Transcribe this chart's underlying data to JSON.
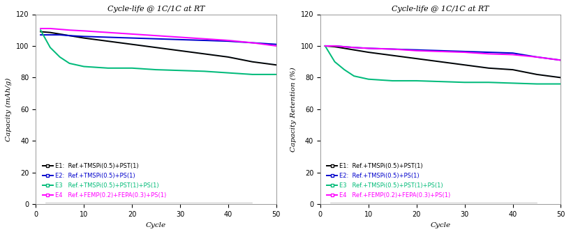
{
  "title": "Cycle-life @ 1C/1C at RT",
  "xlabel": "Cycle",
  "ylabel_left": "Capacity (mAh/g)",
  "ylabel_right": "Capacity Retention (%)",
  "xlim": [
    0,
    50
  ],
  "ylim_left": [
    0,
    120
  ],
  "ylim_right": [
    0,
    120
  ],
  "yticks_left": [
    0,
    20,
    40,
    60,
    80,
    100,
    120
  ],
  "yticks_right": [
    0,
    20,
    40,
    60,
    80,
    100,
    120
  ],
  "xticks": [
    0,
    10,
    20,
    30,
    40,
    50
  ],
  "legend_labels": [
    "E1:  Ref.+TMSPi(0.5)+PST(1)",
    "E2:  Ref.+TMSPi(0.5)+PS(1)",
    "E3   Ref.+TMSPi(0.5)+PST(1)+PS(1)",
    "E4   Ref.+FEMP(0.2)+FEPA(0.3)+PS(1)"
  ],
  "line_colors": [
    "#000000",
    "#0000cc",
    "#00bb77",
    "#ff00ff"
  ],
  "ghost_color": "#aaddff",
  "cycles": [
    1,
    3,
    5,
    7,
    10,
    15,
    20,
    25,
    30,
    35,
    40,
    45,
    50
  ],
  "capacity_E1": [
    109,
    108.5,
    107.5,
    106.5,
    105,
    103,
    101,
    99,
    97,
    95,
    93,
    90,
    88
  ],
  "capacity_E2": [
    107,
    107,
    107,
    106.5,
    106,
    105.5,
    105,
    104.5,
    104,
    103.5,
    103,
    102,
    101
  ],
  "capacity_E3": [
    110,
    99,
    93,
    89,
    87,
    86,
    86,
    85,
    84.5,
    84,
    83,
    82,
    82
  ],
  "capacity_E4": [
    111,
    111,
    110.5,
    110,
    109.5,
    108.5,
    107.5,
    106.5,
    105.5,
    104.5,
    103.5,
    102,
    100
  ],
  "retention_E1": [
    100,
    99.5,
    98.5,
    97.5,
    96,
    94,
    92,
    90,
    88,
    86,
    85,
    82,
    80
  ],
  "retention_E2": [
    100,
    100,
    99.5,
    99,
    98.5,
    98,
    97.5,
    97,
    96.5,
    96,
    95.5,
    93,
    91
  ],
  "retention_E3": [
    100,
    90,
    85,
    81,
    79,
    78,
    78,
    77.5,
    77,
    77,
    76.5,
    76,
    76
  ],
  "retention_E4": [
    100,
    100,
    99.5,
    99,
    98.5,
    98,
    97,
    96.5,
    96,
    95,
    94.5,
    93,
    91
  ],
  "background": "#ffffff",
  "title_fontsize": 8,
  "label_fontsize": 7.5,
  "tick_fontsize": 7,
  "legend_fontsize": 6,
  "line_width": 1.4
}
